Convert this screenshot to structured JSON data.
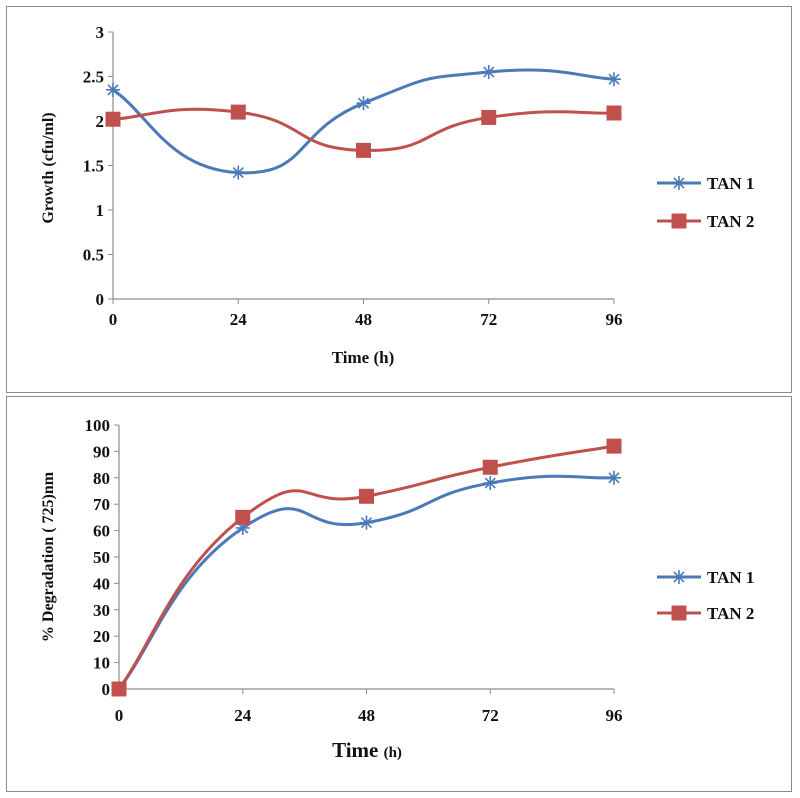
{
  "colors": {
    "TAN 1": "#4a7ab8",
    "TAN 2": "#c0504d",
    "axis": "#8c8c8c"
  },
  "chart_data": [
    {
      "type": "line",
      "smooth": true,
      "x": [
        0,
        24,
        48,
        72,
        96
      ],
      "xticks": [
        "0",
        "24",
        "48",
        "72",
        "96"
      ],
      "xlabel_main": "Time",
      "xlabel_unit": "(h)",
      "ylabel": "Growth (cfu/ml)",
      "ylim": [
        0,
        3
      ],
      "yticks": [
        "0",
        "0.5",
        "1",
        "1.5",
        "2",
        "2.5",
        "3"
      ],
      "grid": false,
      "legend_position": "right",
      "series": [
        {
          "name": "TAN 1",
          "marker": "asterisk-icon",
          "values": [
            2.35,
            1.42,
            2.2,
            2.55,
            2.47
          ]
        },
        {
          "name": "TAN 2",
          "marker": "square-icon",
          "values": [
            2.02,
            2.1,
            1.67,
            2.04,
            2.09
          ]
        }
      ]
    },
    {
      "type": "line",
      "smooth": true,
      "x": [
        0,
        24,
        48,
        72,
        96
      ],
      "xticks": [
        "0",
        "24",
        "48",
        "72",
        "96"
      ],
      "xlabel_main": "Time",
      "xlabel_unit": "(h)",
      "ylabel": "% Degradation ( 725)nm",
      "ylim": [
        0,
        100
      ],
      "yticks": [
        "0",
        "10",
        "20",
        "30",
        "40",
        "50",
        "60",
        "70",
        "80",
        "90",
        "100"
      ],
      "grid": false,
      "legend_position": "right",
      "series": [
        {
          "name": "TAN 1",
          "marker": "asterisk-icon",
          "values": [
            0,
            61,
            63,
            78,
            80
          ]
        },
        {
          "name": "TAN 2",
          "marker": "square-icon",
          "values": [
            0,
            65,
            73,
            84,
            92
          ]
        }
      ]
    }
  ]
}
